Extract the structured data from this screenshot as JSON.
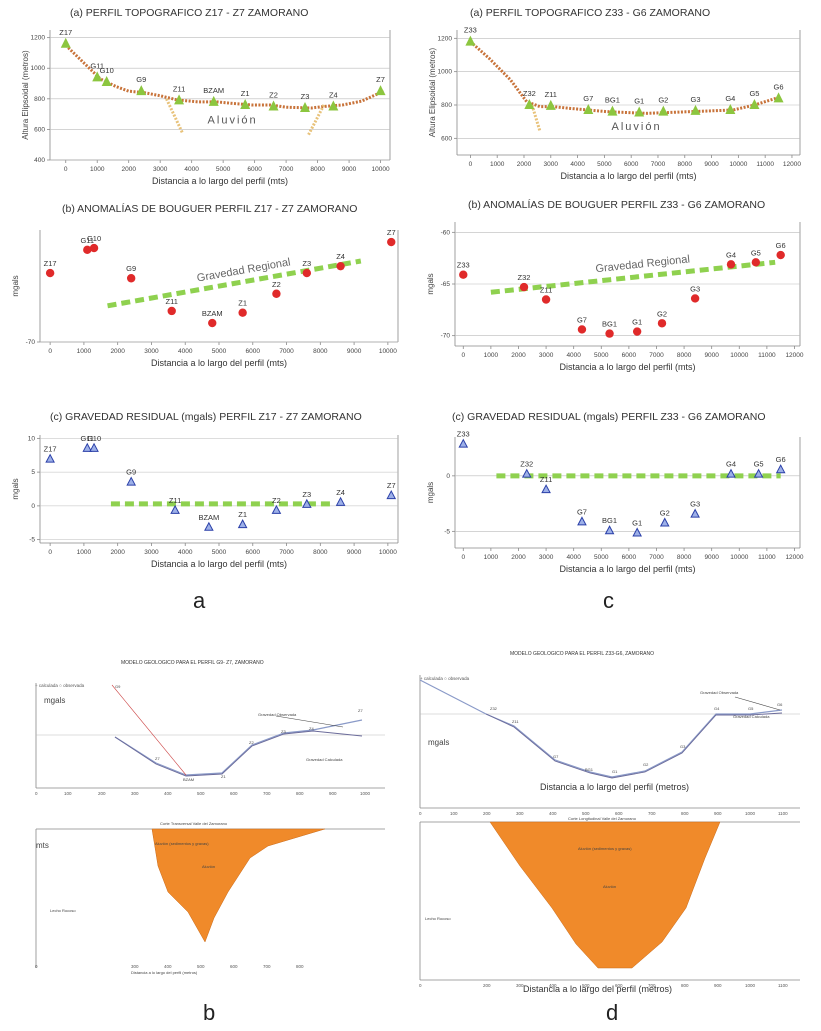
{
  "chart_data": [
    {
      "id": "a1",
      "type": "line",
      "panel": "a",
      "title": "(a)  PERFIL TOPOGRAFICO  Z17 - Z7  ZAMORANO",
      "xlabel": "Distancia a lo largo del perfil (mts)",
      "ylabel": "Altura Elipsoidal (metros)",
      "xlim": [
        -500,
        10300
      ],
      "ylim": [
        400,
        1250
      ],
      "xticks": [
        0,
        1000,
        2000,
        3000,
        4000,
        5000,
        6000,
        7000,
        8000,
        9000,
        10000
      ],
      "yticks": [
        400,
        600,
        800,
        1000,
        1200
      ],
      "series": [
        {
          "x": [
            0,
            600,
            1100,
            1600,
            2000,
            2500,
            3000,
            3500,
            3700,
            4200,
            4800,
            5300,
            5900,
            6500,
            7000,
            7800,
            8200,
            8800,
            9400,
            10100
          ],
          "y": [
            1150,
            1030,
            930,
            880,
            850,
            840,
            820,
            795,
            790,
            780,
            780,
            770,
            760,
            760,
            745,
            740,
            750,
            760,
            785,
            850
          ]
        }
      ],
      "markers": [
        {
          "label": "Z17",
          "x": 0,
          "y": 1160
        },
        {
          "label": "G11",
          "x": 1000,
          "y": 940
        },
        {
          "label": "G10",
          "x": 1300,
          "y": 910
        },
        {
          "label": "G9",
          "x": 2400,
          "y": 850
        },
        {
          "label": "Z11",
          "x": 3600,
          "y": 790
        },
        {
          "label": "BZAM",
          "x": 4700,
          "y": 780
        },
        {
          "label": "Z1",
          "x": 5700,
          "y": 760
        },
        {
          "label": "Z2",
          "x": 6600,
          "y": 750
        },
        {
          "label": "Z3",
          "x": 7600,
          "y": 740
        },
        {
          "label": "Z4",
          "x": 8500,
          "y": 750
        },
        {
          "label": "Z7",
          "x": 10000,
          "y": 850
        }
      ],
      "aluvion_label": "Aluvión"
    },
    {
      "id": "c1",
      "type": "line",
      "panel": "c",
      "title": "(a)  PERFIL TOPOGRAFICO  Z33 - G6  ZAMORANO",
      "xlabel": "Distancia a lo largo del perfil (mts)",
      "ylabel": "Altura Elipsoidal (metros)",
      "xlim": [
        -500,
        12300
      ],
      "ylim": [
        500,
        1250
      ],
      "xticks": [
        0,
        1000,
        2000,
        3000,
        4000,
        5000,
        6000,
        7000,
        8000,
        9000,
        10000,
        11000,
        12000
      ],
      "yticks": [
        600,
        800,
        1000,
        1200
      ],
      "series": [
        {
          "x": [
            0,
            700,
            1500,
            2100,
            2600,
            3100,
            3700,
            4400,
            5100,
            5800,
            6600,
            7400,
            8200,
            9000,
            9800,
            10600,
            11400
          ],
          "y": [
            1180,
            1080,
            950,
            820,
            790,
            790,
            780,
            770,
            760,
            755,
            750,
            755,
            760,
            765,
            770,
            800,
            840
          ]
        }
      ],
      "markers": [
        {
          "label": "Z33",
          "x": 0,
          "y": 1180
        },
        {
          "label": "Z32",
          "x": 2200,
          "y": 800
        },
        {
          "label": "Z11",
          "x": 3000,
          "y": 795
        },
        {
          "label": "G7",
          "x": 4400,
          "y": 770
        },
        {
          "label": "BG1",
          "x": 5300,
          "y": 760
        },
        {
          "label": "G1",
          "x": 6300,
          "y": 755
        },
        {
          "label": "G2",
          "x": 7200,
          "y": 760
        },
        {
          "label": "G3",
          "x": 8400,
          "y": 765
        },
        {
          "label": "G4",
          "x": 9700,
          "y": 770
        },
        {
          "label": "G5",
          "x": 10600,
          "y": 800
        },
        {
          "label": "G6",
          "x": 11500,
          "y": 840
        }
      ],
      "aluvion_label": "Aluvión"
    },
    {
      "id": "a2",
      "type": "scatter",
      "panel": "a",
      "title": "(b)  ANOMALÍAS DE BOUGUER  PERFIL Z17 - Z7  ZAMORANO",
      "xlabel": "Distancia a lo largo del perfil (mts)",
      "ylabel": "mgals",
      "xlim": [
        -300,
        10300
      ],
      "ylim": [
        -70,
        -57
      ],
      "xticks": [
        0,
        1000,
        2000,
        3000,
        4000,
        5000,
        6000,
        7000,
        8000,
        9000,
        10000
      ],
      "yticks": [
        -70
      ],
      "points": [
        {
          "label": "Z17",
          "x": 0,
          "y": -62
        },
        {
          "label": "G11",
          "x": 1100,
          "y": -59.3
        },
        {
          "label": "G10",
          "x": 1300,
          "y": -59.1
        },
        {
          "label": "G9",
          "x": 2400,
          "y": -62.6
        },
        {
          "label": "Z11",
          "x": 3600,
          "y": -66.4
        },
        {
          "label": "BZAM",
          "x": 4800,
          "y": -67.8
        },
        {
          "label": "Z1",
          "x": 5700,
          "y": -66.6
        },
        {
          "label": "Z2",
          "x": 6700,
          "y": -64.4
        },
        {
          "label": "Z3",
          "x": 7600,
          "y": -62
        },
        {
          "label": "Z4",
          "x": 8600,
          "y": -61.2
        },
        {
          "label": "Z7",
          "x": 10100,
          "y": -58.4
        }
      ],
      "regional": {
        "label": "Gravedad Regional",
        "x": [
          1700,
          9200
        ],
        "y": [
          -65.8,
          -60.6
        ]
      }
    },
    {
      "id": "c2",
      "type": "scatter",
      "panel": "c",
      "title": "(b)  ANOMALÍAS DE BOUGUER  PERFIL Z33 - G6  ZAMORANO",
      "xlabel": "Distancia a lo largo del perfil (mts)",
      "ylabel": "mgals",
      "xlim": [
        -300,
        12200
      ],
      "ylim": [
        -71,
        -59
      ],
      "xticks": [
        0,
        1000,
        2000,
        3000,
        4000,
        5000,
        6000,
        7000,
        8000,
        9000,
        10000,
        11000,
        12000
      ],
      "yticks": [
        -60,
        -65,
        -70
      ],
      "points": [
        {
          "label": "Z33",
          "x": 0,
          "y": -64.1
        },
        {
          "label": "Z32",
          "x": 2200,
          "y": -65.3
        },
        {
          "label": "Z11",
          "x": 3000,
          "y": -66.5
        },
        {
          "label": "G7",
          "x": 4300,
          "y": -69.4
        },
        {
          "label": "BG1",
          "x": 5300,
          "y": -69.8
        },
        {
          "label": "G1",
          "x": 6300,
          "y": -69.6
        },
        {
          "label": "G2",
          "x": 7200,
          "y": -68.8
        },
        {
          "label": "G3",
          "x": 8400,
          "y": -66.4
        },
        {
          "label": "G4",
          "x": 9700,
          "y": -63.1
        },
        {
          "label": "G5",
          "x": 10600,
          "y": -62.9
        },
        {
          "label": "G6",
          "x": 11500,
          "y": -62.2
        }
      ],
      "regional": {
        "label": "Gravedad Regional",
        "x": [
          1000,
          11300
        ],
        "y": [
          -65.8,
          -62.9
        ]
      }
    },
    {
      "id": "a3",
      "type": "scatter",
      "panel": "a",
      "title": "(c)  GRAVEDAD RESIDUAL (mgals) PERFIL Z17 - Z7  ZAMORANO",
      "xlabel": "Distancia a lo largo del perfil (mts)",
      "ylabel": "mgals",
      "xlim": [
        -300,
        10300
      ],
      "ylim": [
        -5.5,
        10.5
      ],
      "xticks": [
        0,
        1000,
        2000,
        3000,
        4000,
        5000,
        6000,
        7000,
        8000,
        9000,
        10000
      ],
      "yticks": [
        -5,
        0,
        5,
        10
      ],
      "points": [
        {
          "label": "Z17",
          "x": 0,
          "y": 7
        },
        {
          "label": "G11",
          "x": 1100,
          "y": 8.6
        },
        {
          "label": "G10",
          "x": 1300,
          "y": 8.6
        },
        {
          "label": "G9",
          "x": 2400,
          "y": 3.6
        },
        {
          "label": "Z11",
          "x": 3700,
          "y": -0.6
        },
        {
          "label": "BZAM",
          "x": 4700,
          "y": -3.1
        },
        {
          "label": "Z1",
          "x": 5700,
          "y": -2.7
        },
        {
          "label": "Z2",
          "x": 6700,
          "y": -0.6
        },
        {
          "label": "Z3",
          "x": 7600,
          "y": 0.3
        },
        {
          "label": "Z4",
          "x": 8600,
          "y": 0.6
        },
        {
          "label": "Z7",
          "x": 10100,
          "y": 1.6
        }
      ],
      "baseline": {
        "x": [
          1800,
          8400
        ],
        "y": [
          0.3,
          0.3
        ]
      }
    },
    {
      "id": "c3",
      "type": "scatter",
      "panel": "c",
      "title": "(c)  GRAVEDAD RESIDUAL (mgals) PERFIL Z33 - G6  ZAMORANO",
      "xlabel": "Distancia a lo largo del perfil (mts)",
      "ylabel": "mgals",
      "xlim": [
        -300,
        12200
      ],
      "ylim": [
        -6.5,
        3.5
      ],
      "xticks": [
        0,
        1000,
        2000,
        3000,
        4000,
        5000,
        6000,
        7000,
        8000,
        9000,
        10000,
        11000,
        12000
      ],
      "yticks": [
        0,
        -5
      ],
      "points": [
        {
          "label": "Z33",
          "x": 0,
          "y": 2.9
        },
        {
          "label": "Z32",
          "x": 2300,
          "y": 0.2
        },
        {
          "label": "Z11",
          "x": 3000,
          "y": -1.2
        },
        {
          "label": "G7",
          "x": 4300,
          "y": -4.1
        },
        {
          "label": "BG1",
          "x": 5300,
          "y": -4.9
        },
        {
          "label": "G1",
          "x": 6300,
          "y": -5.1
        },
        {
          "label": "G2",
          "x": 7300,
          "y": -4.2
        },
        {
          "label": "G3",
          "x": 8400,
          "y": -3.4
        },
        {
          "label": "G4",
          "x": 9700,
          "y": 0.2
        },
        {
          "label": "G5",
          "x": 10700,
          "y": 0.2
        },
        {
          "label": "G6",
          "x": 11500,
          "y": 0.6
        }
      ],
      "baseline": {
        "x": [
          1200,
          11500
        ],
        "y": [
          0,
          0
        ]
      }
    }
  ],
  "panels": {
    "b_model_title": "MODELO GEOLOGICO PARA EL PERFIL G9- Z7, ZAMORANO",
    "b_legend": "+ calculada   ○ observada",
    "b_ylabel": "mgals",
    "b_section_title": "Corte Transversal  Valle del Zamorano",
    "b_section_ylabel": "mts",
    "b_fill_label": "Aluvión",
    "b_rock_label": "Lecho Rocoso",
    "b_xlabel": "Distancia a lo largo del perfil  (metros)",
    "b_obs_label": "Gravedad Observada",
    "b_calc_label": "Gravedad Calculada",
    "d_model_title": "MODELO GEOLOGICO PARA EL PERFIL Z33-G6, ZAMORANO",
    "d_legend": "+ calculada   ○ observada",
    "d_ylabel": "mgals",
    "d_xlabel": "Distancia a lo largo del perfil  (metros)",
    "d_section_title": "Corte Longitudinal  Valle del Zamorano",
    "d_fill_label": "Aluvión",
    "d_rock_label": "Lecho Rocoso",
    "d_obs_label": "Gravedad Observada",
    "d_calc_label": "Gravedad Calculada",
    "letters": {
      "a": "a",
      "b": "b",
      "c": "c",
      "d": "d"
    }
  },
  "colors": {
    "red_point": "#e02a2a",
    "green_dash": "#8fd14f",
    "triangle_blue": "#2a3fa8",
    "topo_line": "#c8733a",
    "green_marker": "#8cc63f",
    "orange_fill": "#f08a2a"
  }
}
